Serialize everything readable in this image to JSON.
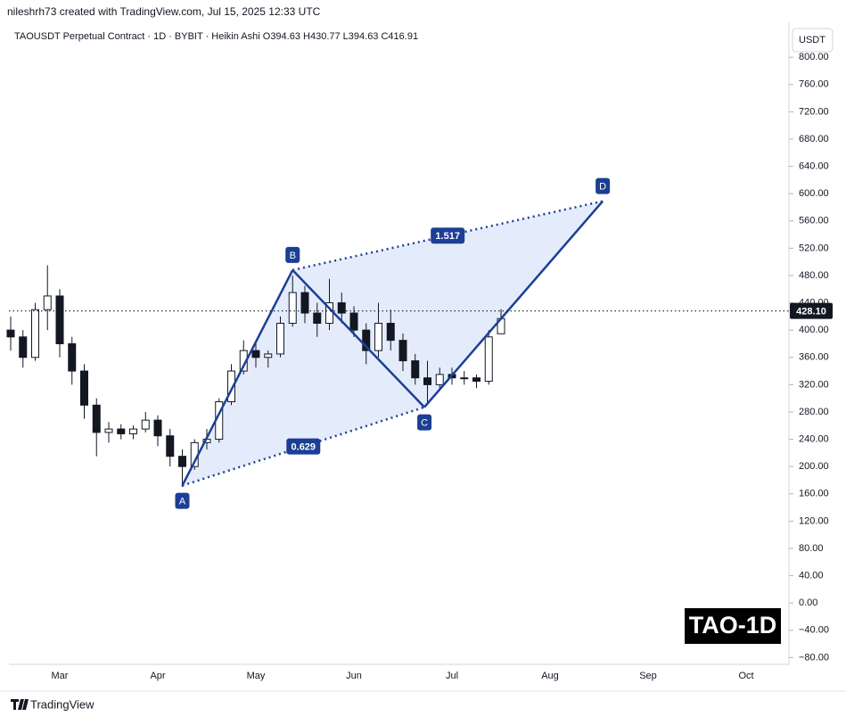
{
  "chart_data": {
    "type": "candlestick",
    "attribution": "nileshrh73 created with TradingView.com, Jul 15, 2025 12:33 UTC",
    "title": "TAOUSDT Perpetual Contract · 1D · BYBIT · Heikin Ashi  O394.63  H430.77  L394.63  C416.91",
    "y_unit": "USDT",
    "watermark": "TAO-1D",
    "brand": "TradingView",
    "up_color": "#ffffff",
    "down_color": "#131722",
    "pattern_color": "#1c3f95",
    "pattern_fill": "#dbe5fb",
    "categories": [
      null,
      null,
      null,
      null,
      "Mar",
      null,
      null,
      null,
      null,
      null,
      null,
      null,
      "Apr",
      null,
      null,
      null,
      null,
      null,
      null,
      null,
      "May",
      null,
      null,
      null,
      null,
      null,
      null,
      null,
      "Jun",
      null,
      null,
      null,
      null,
      null,
      null,
      null,
      "Jul",
      null,
      null,
      null,
      null,
      null,
      null,
      null,
      "Aug",
      null,
      null,
      null,
      null,
      null,
      null,
      null,
      "Sep",
      null,
      null,
      null,
      null,
      null,
      null,
      null,
      "Oct",
      null,
      null,
      null
    ],
    "open": [
      400,
      390,
      360,
      430,
      450,
      380,
      340,
      290,
      250,
      255,
      248,
      255,
      268,
      245,
      215,
      200,
      235,
      240,
      295,
      340,
      370,
      360,
      365,
      410,
      455,
      425,
      410,
      440,
      425,
      400,
      370,
      410,
      385,
      355,
      330,
      320,
      335,
      330,
      330,
      325,
      394.63,
      null,
      null,
      null,
      null,
      null,
      null,
      null,
      null,
      null,
      null,
      null,
      null,
      null,
      null,
      null,
      null,
      null,
      null,
      null,
      null,
      null,
      null,
      null
    ],
    "high": [
      420,
      400,
      440,
      495,
      460,
      390,
      350,
      300,
      265,
      262,
      260,
      280,
      275,
      255,
      225,
      240,
      255,
      300,
      350,
      385,
      380,
      370,
      420,
      480,
      465,
      440,
      475,
      455,
      435,
      410,
      440,
      430,
      395,
      365,
      355,
      345,
      345,
      340,
      335,
      400,
      430.77,
      null,
      null,
      null,
      null,
      null,
      null,
      null,
      null,
      null,
      null,
      null,
      null,
      null,
      null,
      null,
      null,
      null,
      null,
      null,
      null,
      null,
      null,
      null
    ],
    "low": [
      370,
      345,
      355,
      400,
      360,
      320,
      270,
      215,
      235,
      240,
      240,
      250,
      230,
      200,
      170,
      195,
      225,
      235,
      290,
      335,
      345,
      345,
      360,
      405,
      410,
      390,
      400,
      410,
      390,
      350,
      360,
      370,
      340,
      320,
      290,
      315,
      320,
      320,
      315,
      320,
      394.63,
      null,
      null,
      null,
      null,
      null,
      null,
      null,
      null,
      null,
      null,
      null,
      null,
      null,
      null,
      null,
      null,
      null,
      null,
      null,
      null,
      null,
      null,
      null
    ],
    "close": [
      390,
      360,
      430,
      450,
      380,
      340,
      290,
      250,
      255,
      248,
      255,
      268,
      245,
      215,
      200,
      235,
      240,
      295,
      340,
      370,
      360,
      365,
      410,
      455,
      425,
      410,
      440,
      425,
      400,
      370,
      410,
      385,
      355,
      330,
      320,
      335,
      330,
      330,
      325,
      390,
      416.91,
      null,
      null,
      null,
      null,
      null,
      null,
      null,
      null,
      null,
      null,
      null,
      null,
      null,
      null,
      null,
      null,
      null,
      null,
      null,
      null,
      null,
      null,
      null
    ],
    "ylim": [
      -90,
      812
    ],
    "yticks": [
      {
        "value": -80,
        "label": "−80.00"
      },
      {
        "value": -40,
        "label": "−40.00"
      },
      {
        "value": 0,
        "label": "0.00"
      },
      {
        "value": 40,
        "label": "40.00"
      },
      {
        "value": 80,
        "label": "80.00"
      },
      {
        "value": 120,
        "label": "120.00"
      },
      {
        "value": 160,
        "label": "160.00"
      },
      {
        "value": 200,
        "label": "200.00"
      },
      {
        "value": 240,
        "label": "240.00"
      },
      {
        "value": 280,
        "label": "280.00"
      },
      {
        "value": 320,
        "label": "320.00"
      },
      {
        "value": 360,
        "label": "360.00"
      },
      {
        "value": 400,
        "label": "400.00"
      },
      {
        "value": 440,
        "label": "440.00"
      },
      {
        "value": 480,
        "label": "480.00"
      },
      {
        "value": 520,
        "label": "520.00"
      },
      {
        "value": 560,
        "label": "560.00"
      },
      {
        "value": 600,
        "label": "600.00"
      },
      {
        "value": 640,
        "label": "640.00"
      },
      {
        "value": 680,
        "label": "680.00"
      },
      {
        "value": 720,
        "label": "720.00"
      },
      {
        "value": 760,
        "label": "760.00"
      },
      {
        "value": 800,
        "label": "800.00"
      }
    ],
    "last_price": {
      "value": 428.1,
      "label": "428.10"
    },
    "pattern": {
      "points": [
        {
          "label": "A",
          "x": 14.0,
          "y": 172
        },
        {
          "label": "B",
          "x": 23.0,
          "y": 488
        },
        {
          "label": "C",
          "x": 33.75,
          "y": 287
        },
        {
          "label": "D",
          "x": 48.3,
          "y": 589
        }
      ],
      "ratios": [
        0.629,
        1.517
      ]
    }
  }
}
